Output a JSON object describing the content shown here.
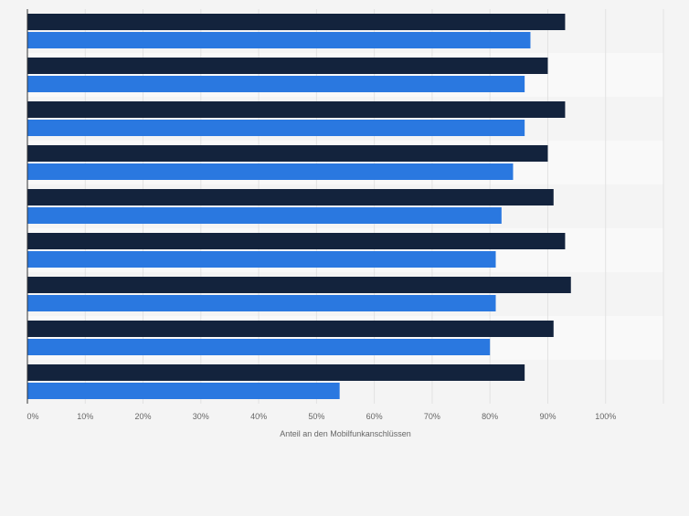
{
  "chart_data": {
    "type": "bar",
    "orientation": "horizontal",
    "categories": [
      "",
      "",
      "",
      "",
      "",
      "",
      "",
      "",
      ""
    ],
    "series": [
      {
        "color": "#13233d",
        "values": [
          93,
          90,
          93,
          90,
          91,
          93,
          94,
          91,
          86
        ]
      },
      {
        "color": "#2a78e0",
        "values": [
          87,
          86,
          86,
          84,
          82,
          81,
          81,
          80,
          54
        ]
      }
    ],
    "xlabel": "Anteil an den Mobilfunkanschlüssen",
    "ylabel": "",
    "xlim": [
      0,
      110
    ],
    "x_ticks": [
      0,
      10,
      20,
      30,
      40,
      50,
      60,
      70,
      80,
      90,
      100
    ],
    "x_tick_labels": [
      "0%",
      "10%",
      "20%",
      "30%",
      "40%",
      "50%",
      "60%",
      "70%",
      "80%",
      "90%",
      "100%"
    ],
    "grid": true,
    "legend": "none"
  }
}
